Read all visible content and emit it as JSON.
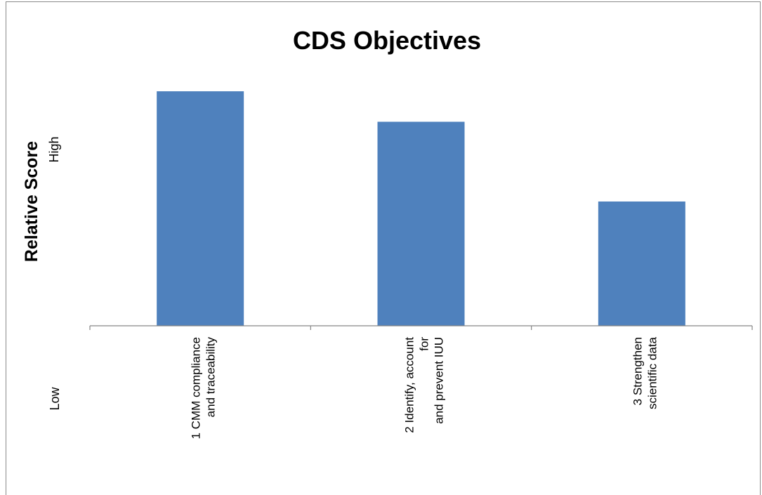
{
  "chart_data": {
    "type": "bar",
    "title": "CDS Objectives",
    "xlabel": "",
    "ylabel": "Relative Score",
    "y_high_label": "High",
    "y_low_label": "Low",
    "categories": [
      [
        "1 CMM compliance",
        "and traceability"
      ],
      [
        "2 Identify, account",
        "for",
        "and prevent IUU"
      ],
      [
        "3 Strengthen",
        "scientific data"
      ]
    ],
    "values": [
      100,
      87,
      53
    ],
    "ylim": [
      0,
      100
    ],
    "grid": false,
    "legend": "none",
    "bar_color": "#4f81bd"
  }
}
